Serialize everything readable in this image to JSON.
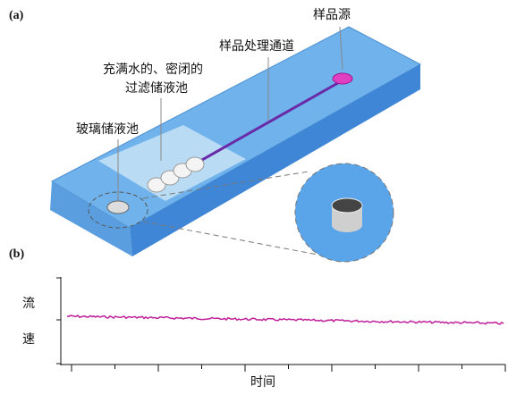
{
  "panel_a": {
    "label": "(a)",
    "sample_source": "样品源",
    "channel": "样品处理通道",
    "filter_reservoir_line1": "充满水的、密闭的",
    "filter_reservoir_line2": "过滤储液池",
    "glass_reservoir": "玻璃储液池"
  },
  "panel_b": {
    "label": "(b)",
    "y_label_1": "流",
    "y_label_2": "速",
    "x_label": "时间"
  }
}
